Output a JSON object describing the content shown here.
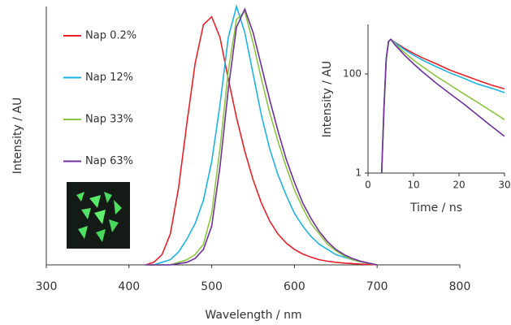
{
  "chart_data": [
    {
      "type": "line",
      "xlabel": "Wavelength / nm",
      "ylabel": "Intensity / AU",
      "xlim": [
        300,
        800
      ],
      "xticks": [
        300,
        400,
        500,
        600,
        700,
        800
      ],
      "ylim": [
        0,
        1
      ],
      "legend": "upper left",
      "x": [
        420,
        430,
        440,
        450,
        460,
        470,
        480,
        490,
        500,
        510,
        520,
        530,
        540,
        550,
        560,
        570,
        580,
        590,
        600,
        610,
        620,
        630,
        640,
        650,
        660,
        670,
        680,
        690,
        700
      ],
      "series": [
        {
          "name": "Nap 0.2%",
          "color": "#e8202a",
          "values": [
            0,
            0.01,
            0.04,
            0.12,
            0.3,
            0.55,
            0.78,
            0.93,
            0.96,
            0.88,
            0.72,
            0.57,
            0.44,
            0.33,
            0.24,
            0.17,
            0.12,
            0.085,
            0.06,
            0.042,
            0.03,
            0.02,
            0.014,
            0.01,
            0.007,
            0.005,
            0.003,
            0.002,
            0
          ]
        },
        {
          "name": "Nap 12%",
          "color": "#1fb3e5",
          "values": [
            0,
            0,
            0.01,
            0.02,
            0.05,
            0.1,
            0.16,
            0.25,
            0.4,
            0.62,
            0.88,
            1.0,
            0.9,
            0.74,
            0.58,
            0.45,
            0.35,
            0.27,
            0.2,
            0.15,
            0.11,
            0.08,
            0.06,
            0.04,
            0.03,
            0.02,
            0.012,
            0.006,
            0
          ]
        },
        {
          "name": "Nap 33%",
          "color": "#8cc63f",
          "values": [
            0,
            0,
            0,
            0,
            0.01,
            0.02,
            0.04,
            0.08,
            0.2,
            0.45,
            0.75,
            0.95,
            0.98,
            0.86,
            0.72,
            0.59,
            0.48,
            0.38,
            0.29,
            0.22,
            0.16,
            0.12,
            0.08,
            0.055,
            0.035,
            0.02,
            0.012,
            0.006,
            0
          ]
        },
        {
          "name": "Nap 63%",
          "color": "#7030a0",
          "values": [
            0,
            0,
            0,
            0,
            0.005,
            0.01,
            0.025,
            0.06,
            0.15,
            0.38,
            0.68,
            0.92,
            0.99,
            0.9,
            0.77,
            0.64,
            0.52,
            0.41,
            0.32,
            0.24,
            0.18,
            0.13,
            0.09,
            0.06,
            0.04,
            0.025,
            0.014,
            0.007,
            0
          ]
        }
      ]
    },
    {
      "type": "line",
      "xlabel": "Time / ns",
      "ylabel": "Intensity / AU",
      "xlim": [
        0,
        30
      ],
      "xticks": [
        0,
        10,
        20,
        30
      ],
      "ylim": [
        1,
        1000
      ],
      "yticks": [
        1,
        100
      ],
      "yscale": "log",
      "x": [
        3,
        3.5,
        4,
        4.5,
        5,
        6,
        8,
        10,
        12,
        15,
        18,
        21,
        24,
        27,
        30
      ],
      "series": [
        {
          "color": "#e8202a",
          "values": [
            1,
            20,
            200,
            450,
            500,
            430,
            330,
            260,
            210,
            160,
            120,
            95,
            75,
            60,
            50
          ]
        },
        {
          "color": "#1fb3e5",
          "values": [
            1,
            20,
            200,
            450,
            500,
            420,
            310,
            240,
            190,
            140,
            105,
            82,
            63,
            52,
            42
          ]
        },
        {
          "color": "#8cc63f",
          "values": [
            1,
            20,
            200,
            450,
            500,
            400,
            270,
            190,
            140,
            90,
            60,
            40,
            27,
            18,
            12
          ]
        },
        {
          "color": "#7030a0",
          "values": [
            1,
            20,
            200,
            450,
            500,
            380,
            240,
            160,
            110,
            65,
            40,
            25,
            15,
            9,
            5.5
          ]
        }
      ]
    }
  ]
}
